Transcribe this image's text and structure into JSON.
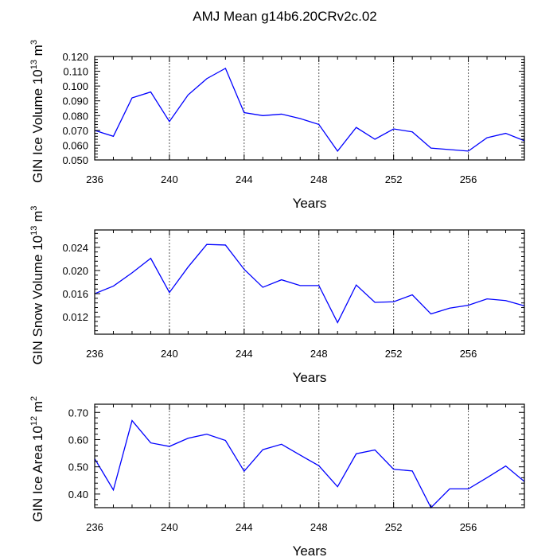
{
  "title": "AMJ Mean g14b6.20CRv2c.02",
  "line_color": "#0000ff",
  "chart_data": [
    {
      "type": "line",
      "ylabel": "GIN Ice Volume 10",
      "ylabel_exp": "13",
      "ylabel_unit": " m",
      "ylabel_unit_exp": "3",
      "xlabel": "Years",
      "xlim": [
        236,
        259
      ],
      "ylim": [
        0.05,
        0.12
      ],
      "xticks": [
        236,
        240,
        244,
        248,
        252,
        256
      ],
      "xtick_labels": [
        "236",
        "240",
        "244",
        "248",
        "252",
        "256"
      ],
      "yticks": [
        0.05,
        0.06,
        0.07,
        0.08,
        0.09,
        0.1,
        0.11,
        0.12
      ],
      "ytick_labels": [
        "0.050",
        "0.060",
        "0.070",
        "0.080",
        "0.090",
        "0.100",
        "0.110",
        "0.120"
      ],
      "x": [
        236,
        237,
        238,
        239,
        240,
        241,
        242,
        243,
        244,
        245,
        246,
        247,
        248,
        249,
        250,
        251,
        252,
        253,
        254,
        255,
        256,
        257,
        258,
        259
      ],
      "values": [
        0.07,
        0.066,
        0.092,
        0.096,
        0.076,
        0.094,
        0.105,
        0.112,
        0.082,
        0.08,
        0.081,
        0.078,
        0.074,
        0.056,
        0.072,
        0.064,
        0.071,
        0.069,
        0.058,
        0.057,
        0.056,
        0.065,
        0.068,
        0.063
      ]
    },
    {
      "type": "line",
      "ylabel": "GIN Snow Volume 10",
      "ylabel_exp": "13",
      "ylabel_unit": " m",
      "ylabel_unit_exp": "3",
      "xlabel": "Years",
      "xlim": [
        236,
        259
      ],
      "ylim": [
        0.009,
        0.027
      ],
      "xticks": [
        236,
        240,
        244,
        248,
        252,
        256
      ],
      "xtick_labels": [
        "236",
        "240",
        "244",
        "248",
        "252",
        "256"
      ],
      "yticks": [
        0.012,
        0.016,
        0.02,
        0.024
      ],
      "ytick_labels": [
        "0.012",
        "0.016",
        "0.020",
        "0.024"
      ],
      "x": [
        236,
        237,
        238,
        239,
        240,
        241,
        242,
        243,
        244,
        245,
        246,
        247,
        248,
        249,
        250,
        251,
        252,
        253,
        254,
        255,
        256,
        257,
        258,
        259
      ],
      "values": [
        0.016,
        0.0173,
        0.0196,
        0.0221,
        0.0162,
        0.0206,
        0.0245,
        0.0244,
        0.0202,
        0.0171,
        0.0184,
        0.0174,
        0.0174,
        0.011,
        0.0175,
        0.0145,
        0.0146,
        0.0158,
        0.0125,
        0.0135,
        0.014,
        0.0151,
        0.0148,
        0.0139
      ]
    },
    {
      "type": "line",
      "ylabel": "GIN Ice Area 10",
      "ylabel_exp": "12",
      "ylabel_unit": " m",
      "ylabel_unit_exp": "2",
      "xlabel": "Years",
      "xlim": [
        236,
        259
      ],
      "ylim": [
        0.35,
        0.73
      ],
      "xticks": [
        236,
        240,
        244,
        248,
        252,
        256
      ],
      "xtick_labels": [
        "236",
        "240",
        "244",
        "248",
        "252",
        "256"
      ],
      "yticks": [
        0.4,
        0.5,
        0.6,
        0.7
      ],
      "ytick_labels": [
        "0.40",
        "0.50",
        "0.60",
        "0.70"
      ],
      "x": [
        236,
        237,
        238,
        239,
        240,
        241,
        242,
        243,
        244,
        245,
        246,
        247,
        248,
        249,
        250,
        251,
        252,
        253,
        254,
        255,
        256,
        257,
        258,
        259
      ],
      "values": [
        0.53,
        0.415,
        0.67,
        0.588,
        0.575,
        0.605,
        0.62,
        0.597,
        0.484,
        0.563,
        0.583,
        0.543,
        0.504,
        0.427,
        0.548,
        0.562,
        0.491,
        0.485,
        0.35,
        0.419,
        0.419,
        0.46,
        0.503,
        0.446
      ]
    }
  ]
}
